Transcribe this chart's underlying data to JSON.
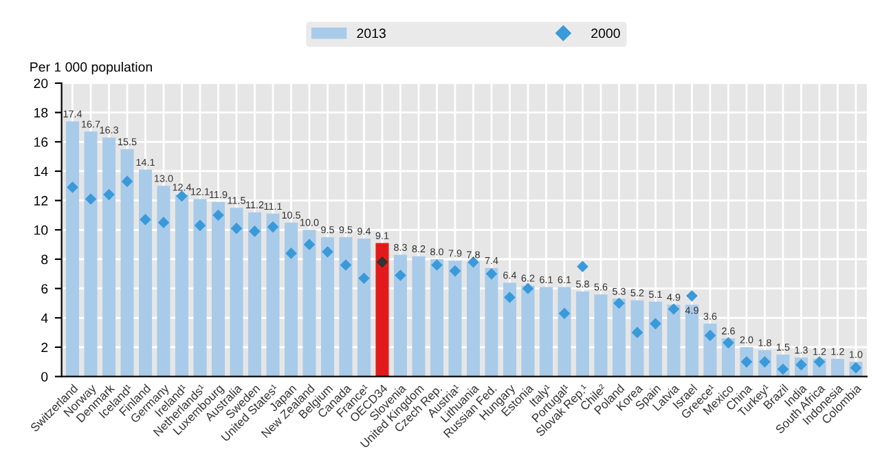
{
  "chart_data": {
    "type": "bar",
    "ylabel": "Per 1 000 population",
    "categories": [
      "Switzerland",
      "Norway",
      "Denmark",
      "Iceland¹",
      "Finland",
      "Germany",
      "Ireland¹",
      "Netherlands¹",
      "Luxembourg",
      "Australia",
      "Sweden",
      "United States¹",
      "Japan",
      "New Zealand",
      "Belgium",
      "Canada",
      "France¹",
      "OECD34",
      "Slovenia",
      "United Kingdom",
      "Czech Rep.",
      "Austria¹",
      "Lithuania",
      "Russian Fed.",
      "Hungary",
      "Estonia",
      "Italy¹",
      "Portugal¹",
      "Slovak Rep.¹",
      "Chile²",
      "Poland",
      "Korea",
      "Spain",
      "Latvia",
      "Israel",
      "Greece¹",
      "Mexico",
      "China",
      "Turkey¹",
      "Brazil",
      "India",
      "South Africa",
      "Indonesia",
      "Colombia"
    ],
    "series": [
      {
        "name": "2013",
        "type": "bar",
        "color": "#a9cbea",
        "colors": [
          "#a9cbea",
          "#a9cbea",
          "#a9cbea",
          "#a9cbea",
          "#a9cbea",
          "#a9cbea",
          "#a9cbea",
          "#a9cbea",
          "#a9cbea",
          "#a9cbea",
          "#a9cbea",
          "#a9cbea",
          "#a9cbea",
          "#a9cbea",
          "#a9cbea",
          "#a9cbea",
          "#a9cbea",
          "#e31a1c",
          "#a9cbea",
          "#a9cbea",
          "#a9cbea",
          "#a9cbea",
          "#a9cbea",
          "#a9cbea",
          "#a9cbea",
          "#a9cbea",
          "#a9cbea",
          "#a9cbea",
          "#a9cbea",
          "#a9cbea",
          "#a9cbea",
          "#a9cbea",
          "#a9cbea",
          "#a9cbea",
          "#a9cbea",
          "#a9cbea",
          "#a9cbea",
          "#a9cbea",
          "#a9cbea",
          "#a9cbea",
          "#a9cbea",
          "#a9cbea",
          "#a9cbea",
          "#a9cbea"
        ],
        "values": [
          17.4,
          16.7,
          16.3,
          15.5,
          14.1,
          13.0,
          12.4,
          12.1,
          11.9,
          11.5,
          11.2,
          11.1,
          10.5,
          10.0,
          9.5,
          9.5,
          9.4,
          9.1,
          8.3,
          8.2,
          8.0,
          7.9,
          7.8,
          7.4,
          6.4,
          6.2,
          6.1,
          6.1,
          5.8,
          5.6,
          5.3,
          5.2,
          5.1,
          4.9,
          4.9,
          3.6,
          2.6,
          2.0,
          1.8,
          1.5,
          1.3,
          1.2,
          1.2,
          1.0
        ],
        "value_labels": [
          "17.4",
          "16.7",
          "16.3",
          "15.5",
          "14.1",
          "13.0",
          "12.4",
          "12.1",
          "11.9",
          "11.5",
          "11.2",
          "11.1",
          "10.5",
          "10.0",
          "9.5",
          "9.5",
          "9.4",
          "9.1",
          "8.3",
          "8.2",
          "8.0",
          "7.9",
          "7.8",
          "7.4",
          "6.4",
          "6.2",
          "6.1",
          "6.1",
          "5.8",
          "5.6",
          "5.3",
          "5.2",
          "5.1",
          "4.9",
          "4.9",
          "3.6",
          "2.6",
          "2.0",
          "1.8",
          "1.5",
          "1.3",
          "1.2",
          "1.2",
          "1.0"
        ]
      },
      {
        "name": "2000",
        "type": "scatter",
        "marker": "diamond",
        "color": "#3a9ad9",
        "colors": [
          "#3a9ad9",
          "#3a9ad9",
          "#3a9ad9",
          "#3a9ad9",
          "#3a9ad9",
          "#3a9ad9",
          "#3a9ad9",
          "#3a9ad9",
          "#3a9ad9",
          "#3a9ad9",
          "#3a9ad9",
          "#3a9ad9",
          "#3a9ad9",
          "#3a9ad9",
          "#3a9ad9",
          "#3a9ad9",
          "#3a9ad9",
          "#333333",
          "#3a9ad9",
          "#3a9ad9",
          "#3a9ad9",
          "#3a9ad9",
          "#3a9ad9",
          "#3a9ad9",
          "#3a9ad9",
          "#3a9ad9",
          "#3a9ad9",
          "#3a9ad9",
          "#3a9ad9",
          "#3a9ad9",
          "#3a9ad9",
          "#3a9ad9",
          "#3a9ad9",
          "#3a9ad9",
          "#3a9ad9",
          "#3a9ad9",
          "#3a9ad9",
          "#3a9ad9",
          "#3a9ad9",
          "#3a9ad9",
          "#3a9ad9",
          "#3a9ad9",
          "#3a9ad9",
          "#3a9ad9"
        ],
        "values": [
          12.9,
          12.1,
          12.4,
          13.3,
          10.7,
          10.5,
          12.3,
          10.3,
          11.0,
          10.1,
          9.9,
          10.2,
          8.4,
          9.0,
          8.5,
          7.6,
          6.7,
          7.8,
          6.9,
          null,
          7.6,
          7.2,
          7.8,
          7.0,
          5.4,
          6.0,
          null,
          4.3,
          7.5,
          null,
          5.0,
          3.0,
          3.6,
          4.6,
          5.5,
          2.8,
          2.3,
          1.0,
          1.0,
          0.5,
          0.8,
          1.0,
          null,
          0.6
        ]
      }
    ],
    "ylim": [
      0,
      20
    ],
    "yticks": [
      0,
      2,
      4,
      6,
      8,
      10,
      12,
      14,
      16,
      18,
      20
    ],
    "grid": true,
    "legend": "top"
  }
}
